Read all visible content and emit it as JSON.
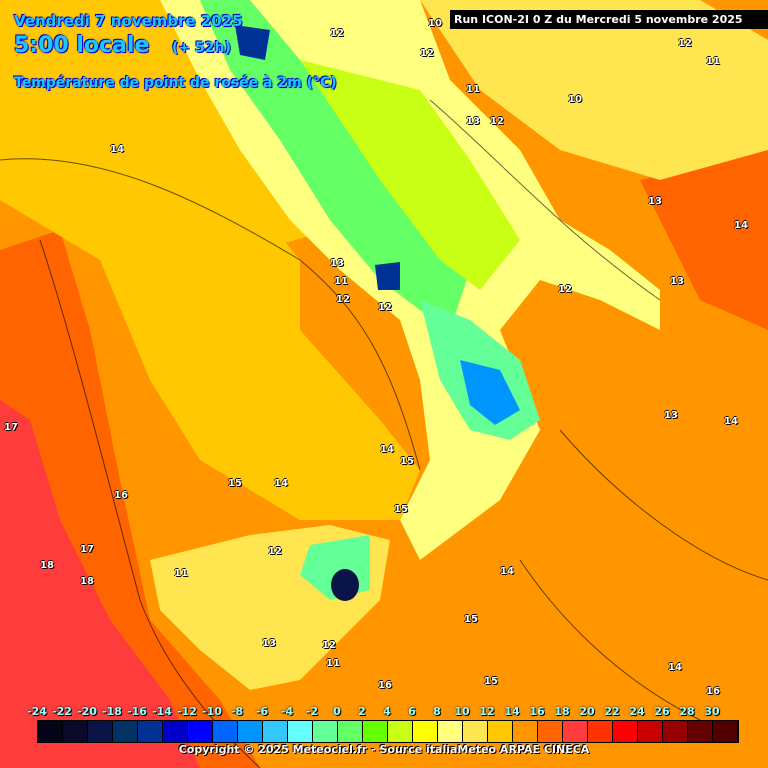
{
  "header": {
    "date": "Vendredi 7 novembre 2025",
    "time": "5:00 locale",
    "lead": "(+ 52h)",
    "parameter": "Température de point de rosée à 2m (°C)",
    "run": "Run ICON-2I 0 Z du Mercredi 5 novembre 2025"
  },
  "legend": {
    "labels": [
      "-24",
      "-22",
      "-20",
      "-18",
      "-16",
      "-14",
      "-12",
      "-10",
      "-8",
      "-6",
      "-4",
      "-2",
      "0",
      "2",
      "4",
      "6",
      "8",
      "10",
      "12",
      "14",
      "16",
      "18",
      "20",
      "22",
      "24",
      "26",
      "28",
      "30"
    ],
    "colors": [
      "#05051a",
      "#0a0a28",
      "#0a1446",
      "#003264",
      "#003296",
      "#0000c8",
      "#0000ff",
      "#0064ff",
      "#0096ff",
      "#32c8ff",
      "#64ffff",
      "#64ff96",
      "#64ff64",
      "#64ff00",
      "#c8ff14",
      "#ffff00",
      "#ffff80",
      "#ffe650",
      "#ffc800",
      "#ff9600",
      "#ff6400",
      "#ff3c3c",
      "#ff3200",
      "#ff0000",
      "#c80000",
      "#960000",
      "#640000",
      "#500000"
    ]
  },
  "contour_labels": [
    "10",
    "12",
    "12",
    "11",
    "10",
    "12",
    "11",
    "13",
    "12",
    "14",
    "13",
    "14",
    "13",
    "12",
    "13",
    "11",
    "12",
    "12",
    "13",
    "14",
    "17",
    "16",
    "15",
    "14",
    "14",
    "15",
    "15",
    "17",
    "18",
    "18",
    "11",
    "12",
    "13",
    "12",
    "11",
    "14",
    "16",
    "15",
    "15",
    "14",
    "16"
  ],
  "copyright": "Copyright © 2025 Meteociel.fr - Source italiaMeteo ARPAE CINECA"
}
